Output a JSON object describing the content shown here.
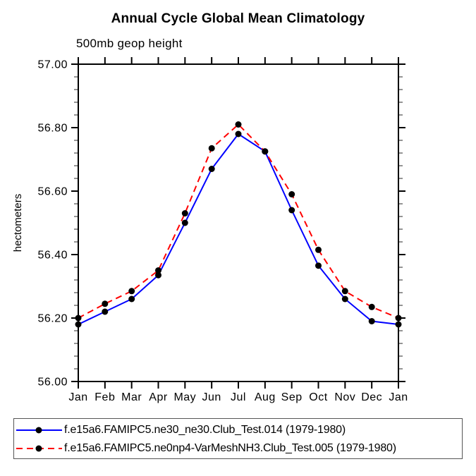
{
  "chart_data": {
    "type": "line",
    "title": "Annual Cycle Global Mean Climatology",
    "subtitle": "500mb geop height",
    "ylabel": "hectometers",
    "xlabel": "",
    "categories": [
      "Jan",
      "Feb",
      "Mar",
      "Apr",
      "May",
      "Jun",
      "Jul",
      "Aug",
      "Sep",
      "Oct",
      "Nov",
      "Dec",
      "Jan"
    ],
    "ylim": [
      56.0,
      57.0
    ],
    "ytick_step": 0.2,
    "yminor_step": 0.04,
    "ytick_labels": [
      "56.00",
      "56.20",
      "56.40",
      "56.60",
      "56.80",
      "57.00"
    ],
    "grid": false,
    "legend_position": "bottom",
    "axis_color": "#000000",
    "minor_tick_color": "#666666",
    "marker_color": "#000000",
    "series": [
      {
        "name": "f.e15a6.FAMIPC5.ne30_ne30.Club_Test.014 (1979-1980)",
        "color": "#0000ff",
        "line_style": "solid",
        "marker": "circle",
        "values": [
          56.18,
          56.22,
          56.26,
          56.335,
          56.5,
          56.67,
          56.78,
          56.725,
          56.54,
          56.365,
          56.26,
          56.19,
          56.18
        ]
      },
      {
        "name": "f.e15a6.FAMIPC5.ne0np4-VarMeshNH3.Club_Test.005 (1979-1980)",
        "color": "#ff0000",
        "line_style": "dashed",
        "marker": "circle",
        "values": [
          56.2,
          56.245,
          56.285,
          56.35,
          56.53,
          56.735,
          56.81,
          56.725,
          56.59,
          56.415,
          56.285,
          56.235,
          56.2
        ]
      }
    ]
  }
}
